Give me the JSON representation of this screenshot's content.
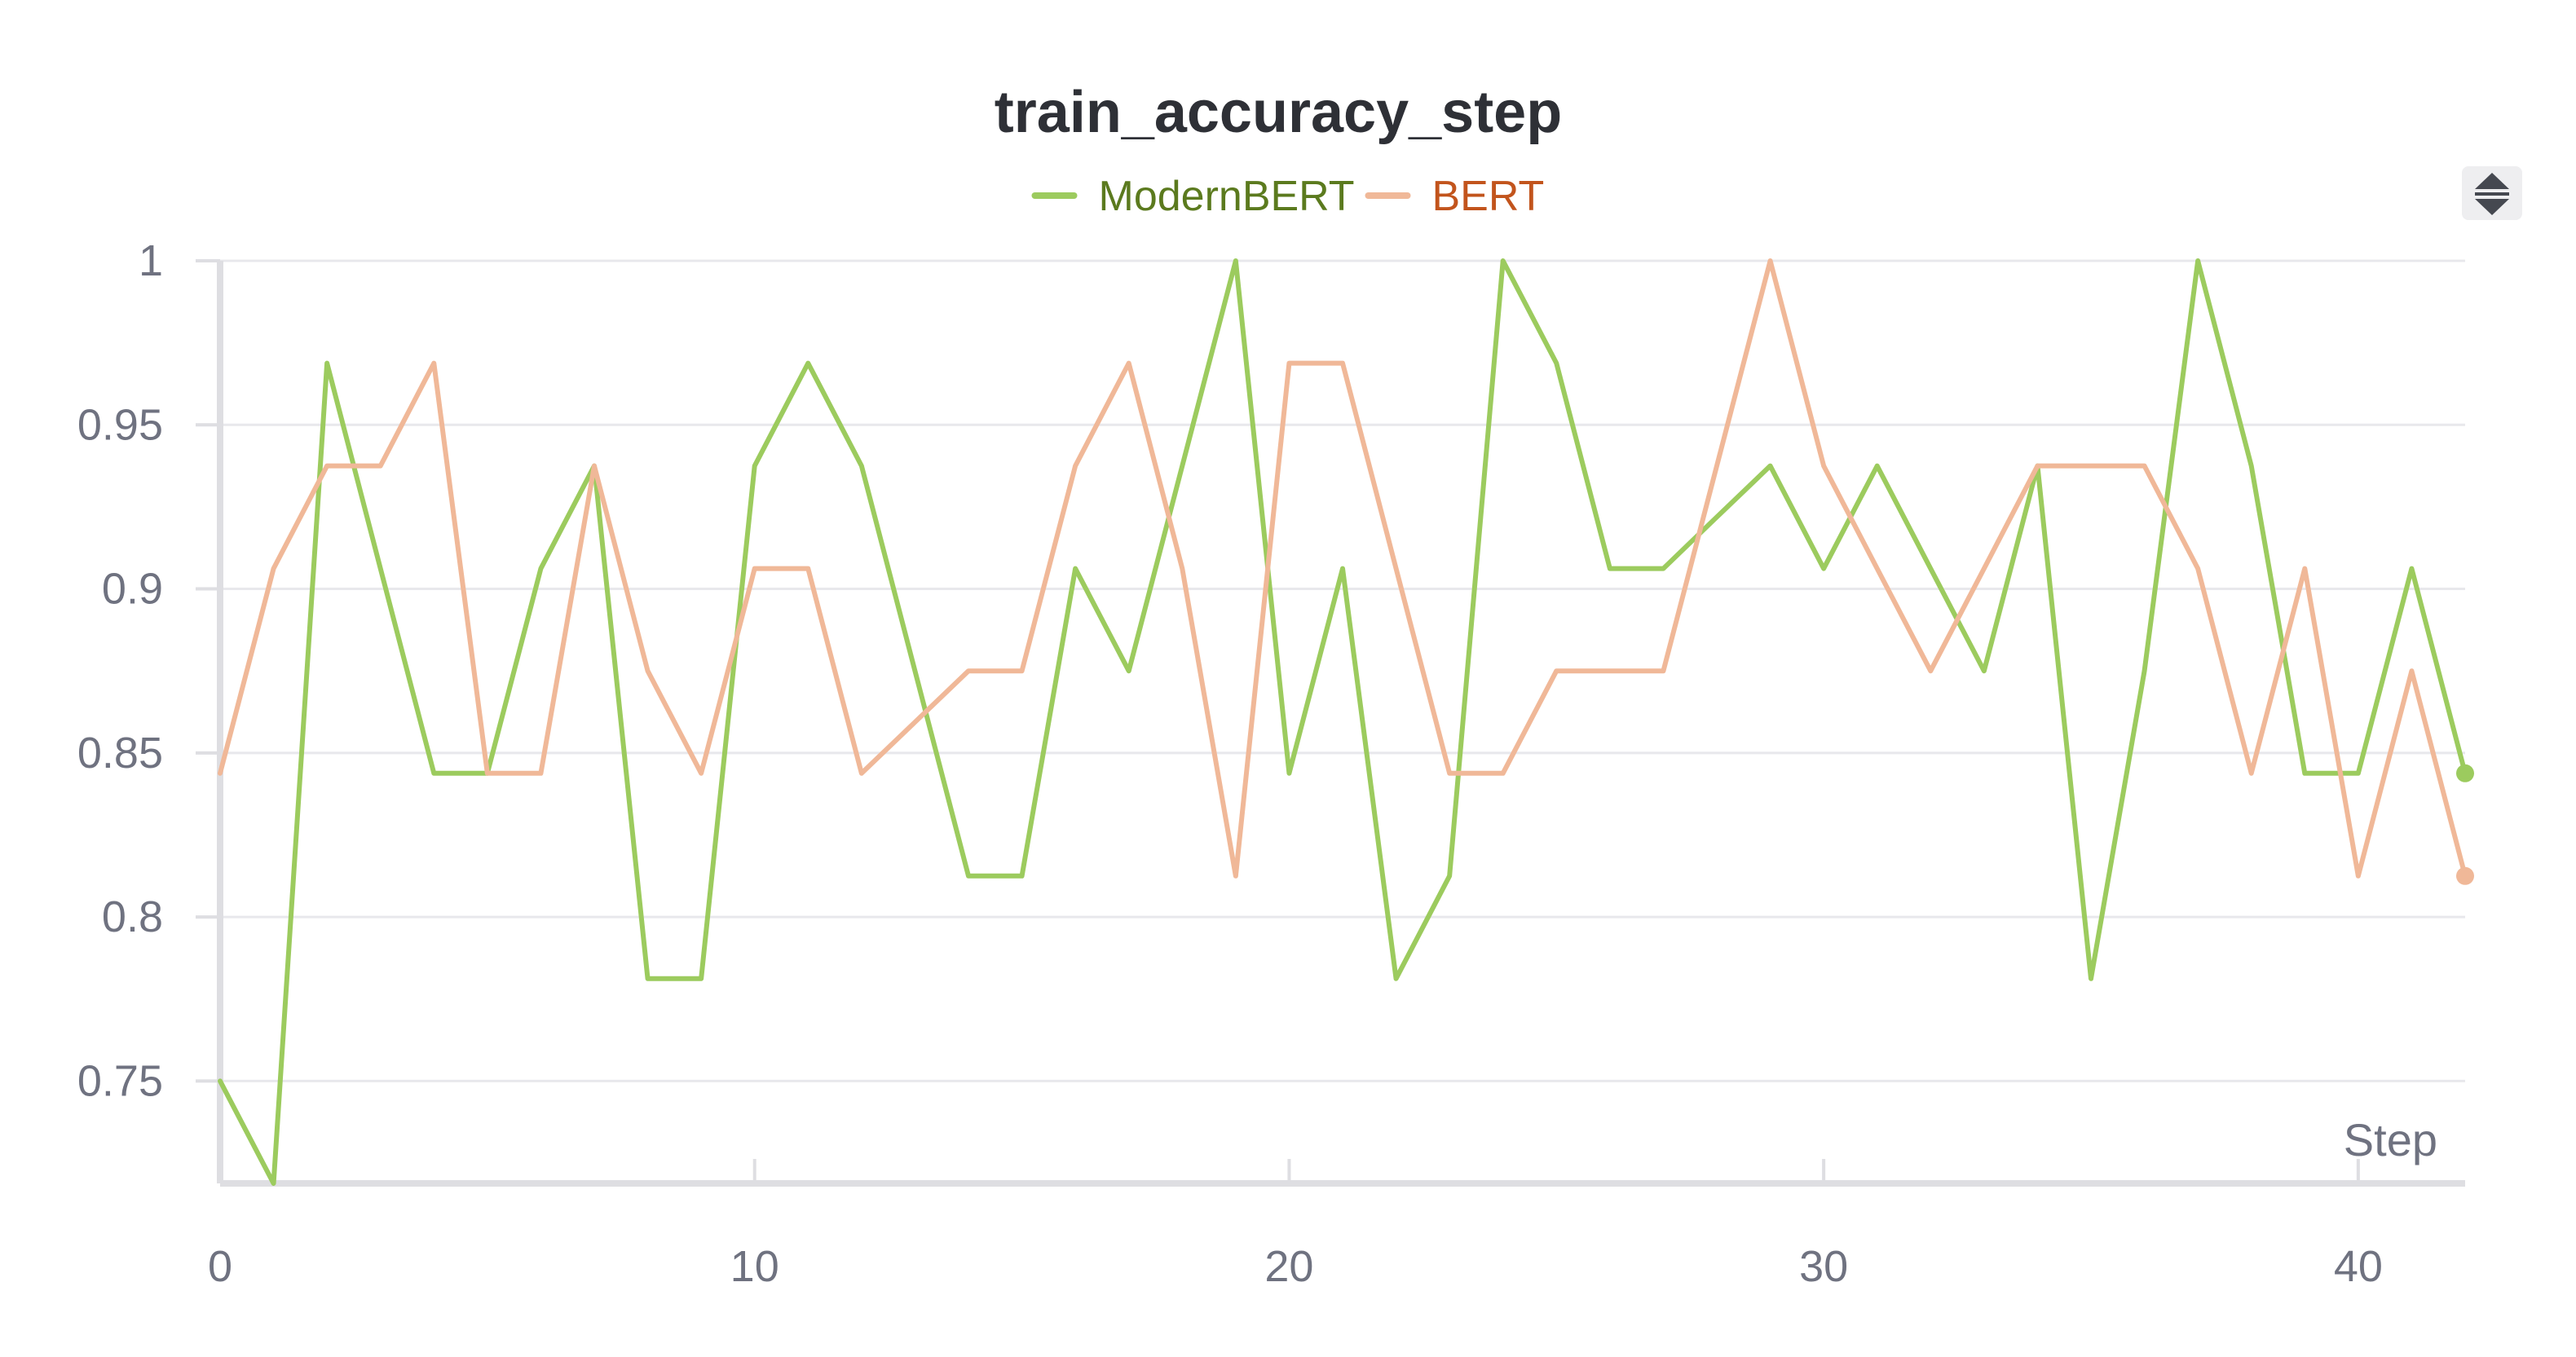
{
  "chart_data": {
    "type": "line",
    "title": "train_accuracy_step",
    "xlabel": "Step",
    "ylabel": "",
    "xlim": [
      0,
      42
    ],
    "ylim": [
      0.7188,
      1
    ],
    "x_ticks": [
      0,
      10,
      20,
      30,
      40
    ],
    "y_ticks": [
      0.75,
      0.8,
      0.85,
      0.9,
      0.95,
      1
    ],
    "y_tick_labels": [
      "0.75",
      "0.8",
      "0.85",
      "0.9",
      "0.95",
      "1"
    ],
    "x": [
      0,
      1,
      2,
      3,
      4,
      5,
      6,
      7,
      8,
      9,
      10,
      11,
      12,
      13,
      14,
      15,
      16,
      17,
      18,
      19,
      20,
      21,
      22,
      23,
      24,
      25,
      26,
      27,
      28,
      29,
      30,
      31,
      32,
      33,
      34,
      35,
      36,
      37,
      38,
      39,
      40,
      41,
      42
    ],
    "grid": true,
    "legend_position": "top-center",
    "series": [
      {
        "name": "ModernBERT",
        "color": "#9ccb5e",
        "label_color": "#5b7a1e",
        "values": [
          0.75,
          0.7188,
          0.9688,
          0.9062,
          0.8438,
          0.8438,
          0.9062,
          0.9375,
          0.7812,
          0.7812,
          0.9375,
          0.9688,
          0.9375,
          0.875,
          0.8125,
          0.8125,
          0.9062,
          0.875,
          0.9375,
          1,
          0.8438,
          0.9062,
          0.7812,
          0.8125,
          1,
          0.9688,
          0.9062,
          0.9062,
          0.9219,
          0.9375,
          0.9062,
          0.9375,
          0.9062,
          0.875,
          0.9375,
          0.7812,
          0.875,
          1,
          0.9375,
          0.8438,
          0.8438,
          0.9062,
          0.8438
        ]
      },
      {
        "name": "BERT",
        "color": "#f0b898",
        "label_color": "#c2541c",
        "values": [
          0.8438,
          0.9062,
          0.9375,
          0.9375,
          0.9688,
          0.8438,
          0.8438,
          0.9375,
          0.875,
          0.8438,
          0.9062,
          0.9062,
          0.8438,
          0.8594,
          0.875,
          0.875,
          0.9375,
          0.9688,
          0.9062,
          0.8125,
          0.9688,
          0.9688,
          0.9062,
          0.8438,
          0.8438,
          0.875,
          0.875,
          0.875,
          0.9375,
          1,
          0.9375,
          0.9062,
          0.875,
          0.9062,
          0.9375,
          0.9375,
          0.9375,
          0.9062,
          0.8438,
          0.9062,
          0.8125,
          0.875,
          0.8125
        ]
      }
    ]
  },
  "icons": {
    "scroll_control": "sort-arrows-icon"
  }
}
